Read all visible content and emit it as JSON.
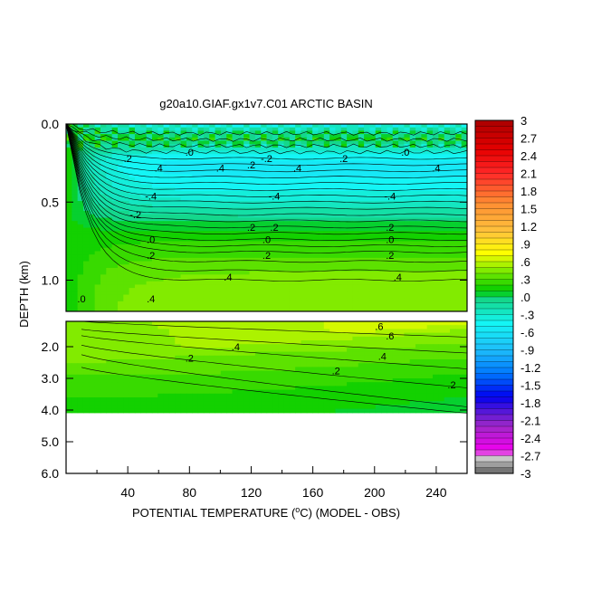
{
  "chart_data": {
    "type": "heatmap",
    "title": "g20a10.GIAF.gx1v7.C01 ARCTIC BASIN",
    "xlabel": "POTENTIAL TEMPERATURE (",
    "xlabel_sup": "o",
    "xlabel_rest": "C) (MODEL - OBS)",
    "ylabel": "DEPTH (km)",
    "xlim": [
      0,
      260
    ],
    "x_ticks": [
      "40",
      "80",
      "120",
      "160",
      "200",
      "240"
    ],
    "upper_panel": {
      "ylim": [
        0,
        1.2
      ],
      "y_ticks": [
        "0.0",
        "0.5",
        "1.0"
      ]
    },
    "lower_panel": {
      "ylim": [
        1.2,
        6.0
      ],
      "y_ticks": [
        "2.0",
        "3.0",
        "4.0",
        "5.0",
        "6.0"
      ]
    },
    "data_bottom_depth": 4.1,
    "colorbar": {
      "range": [
        -3,
        3
      ],
      "step": 0.1,
      "labels": [
        "3",
        "2.7",
        "2.4",
        "2.1",
        "1.8",
        "1.5",
        "1.2",
        ".9",
        ".6",
        ".3",
        ".0",
        "-.3",
        "-.6",
        "-.9",
        "-1.2",
        "-1.5",
        "-1.8",
        "-2.1",
        "-2.4",
        "-2.7",
        "-3"
      ]
    },
    "contour_labels_upper": [
      ".0",
      ".0",
      "-.2",
      ".2",
      ".2",
      ".2",
      ".4",
      ".4",
      ".4",
      ".4",
      "-.4",
      "-.4",
      "-.4",
      ".2",
      "-.2",
      ".2",
      ".2",
      ".0",
      ".0",
      ".0",
      ".2",
      ".2",
      ".2",
      ".4",
      ".4",
      ".4",
      ".0"
    ],
    "contour_labels_lower": [
      ".6",
      ".6",
      ".4",
      ".4",
      ".2",
      ".2",
      ".2"
    ],
    "upper_profile": {
      "depth_km": [
        0.0,
        0.05,
        0.1,
        0.15,
        0.2,
        0.25,
        0.3,
        0.35,
        0.4,
        0.45,
        0.5,
        0.55,
        0.6,
        0.65,
        0.7,
        0.75,
        0.8,
        0.85,
        0.9,
        0.95,
        1.0,
        1.05,
        1.1,
        1.15,
        1.2
      ],
      "anomaly": [
        -0.4,
        -0.1,
        0.05,
        -0.15,
        -0.45,
        -0.55,
        -0.55,
        -0.5,
        -0.45,
        -0.38,
        -0.28,
        -0.18,
        -0.08,
        0.05,
        0.12,
        0.2,
        0.25,
        0.3,
        0.35,
        0.4,
        0.42,
        0.45,
        0.47,
        0.48,
        0.48
      ]
    },
    "lower_profile": {
      "depth_km": [
        1.2,
        1.5,
        2.0,
        2.5,
        3.0,
        3.5,
        4.1
      ],
      "anomaly_west": [
        0.25,
        0.22,
        0.2,
        0.18,
        0.15,
        0.12,
        0.1
      ],
      "anomaly_east": [
        0.75,
        0.55,
        0.42,
        0.3,
        0.2,
        0.12,
        0.08
      ]
    }
  }
}
